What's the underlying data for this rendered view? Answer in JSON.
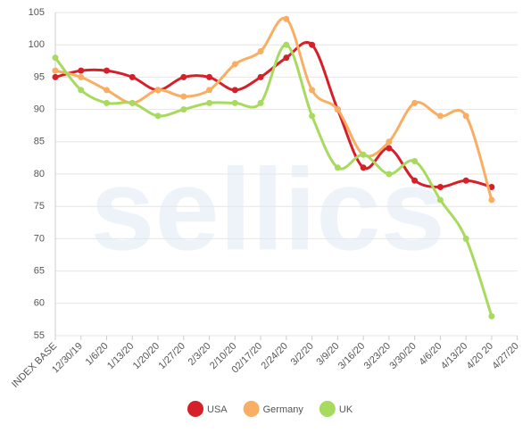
{
  "chart_data": {
    "type": "line",
    "watermark": "sellics",
    "categories": [
      "INDEX BASE",
      "12/30/19",
      "1/6/20",
      "1/13/20",
      "1/20/20",
      "1/27/20",
      "2/3/20",
      "2/10/20",
      "02/17/20",
      "2/24/20",
      "3/2/20",
      "3/9/20",
      "3/16/20",
      "3/23/20",
      "3/30/20",
      "4/6/20",
      "4/13/20",
      "4/20 20",
      "4/27/20"
    ],
    "series": [
      {
        "name": "USA",
        "color": "#d52029",
        "values": [
          95,
          96,
          96,
          95,
          93,
          95,
          95,
          93,
          95,
          98,
          100,
          90,
          81,
          84,
          79,
          78,
          79,
          78,
          null
        ]
      },
      {
        "name": "Germany",
        "color": "#f8ae63",
        "values": [
          96,
          95,
          93,
          91,
          93,
          92,
          93,
          97,
          99,
          104,
          93,
          90,
          83,
          85,
          91,
          89,
          89,
          76,
          null
        ]
      },
      {
        "name": "UK",
        "color": "#a7da5f",
        "values": [
          98,
          93,
          91,
          91,
          89,
          90,
          91,
          91,
          91,
          100,
          89,
          81,
          83,
          80,
          82,
          76,
          70,
          58,
          null
        ]
      }
    ],
    "ylim": [
      55,
      105
    ],
    "yticks": [
      55,
      60,
      65,
      70,
      75,
      80,
      85,
      90,
      95,
      100,
      105
    ],
    "grid": true,
    "legend": "bottom"
  }
}
